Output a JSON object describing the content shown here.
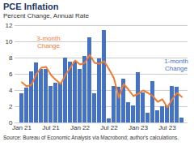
{
  "chart_data": {
    "type": "bar",
    "title": "PCE Inflation",
    "subtitle": "Percent Change, Annual Rate",
    "source": "Source: Bureau of Economic Analysis via Macrobond; author's calculations.",
    "categories": [
      "Jan 21",
      null,
      null,
      null,
      null,
      null,
      "Jul 21",
      null,
      null,
      null,
      null,
      null,
      "Jan 22",
      null,
      null,
      null,
      null,
      null,
      "Jul 22",
      null,
      null,
      null,
      null,
      null,
      "Jan 23",
      null,
      null,
      null,
      null,
      null,
      "Jul 23",
      null,
      null,
      null
    ],
    "series": [
      {
        "name": "1-month Change",
        "type": "bar",
        "color": "#4472c4",
        "values": [
          3.6,
          4.3,
          6.3,
          7.4,
          6.6,
          6.6,
          4.5,
          4.9,
          4.9,
          8.0,
          7.5,
          7.5,
          6.6,
          8.2,
          10.5,
          3.6,
          7.9,
          11.4,
          0.5,
          4.5,
          4.4,
          5.4,
          2.5,
          2.1,
          6.2,
          3.7,
          1.2,
          5.1,
          1.5,
          2.0,
          2.1,
          4.5,
          4.4,
          0.6
        ]
      },
      {
        "name": "3-month Change",
        "type": "line",
        "color": "#ed7d31",
        "values": [
          5.0,
          4.5,
          4.7,
          6.0,
          6.8,
          6.9,
          5.9,
          5.3,
          4.8,
          5.9,
          6.8,
          7.7,
          7.2,
          7.4,
          8.4,
          7.4,
          7.3,
          7.6,
          6.6,
          5.5,
          3.1,
          4.8,
          4.1,
          3.3,
          3.6,
          4.0,
          3.7,
          3.3,
          2.6,
          2.9,
          1.9,
          2.9,
          3.7,
          3.2
        ]
      }
    ],
    "ylim": [
      0,
      12
    ],
    "yticks": [
      0,
      2,
      4,
      6,
      8,
      10,
      12
    ],
    "grid": true
  }
}
